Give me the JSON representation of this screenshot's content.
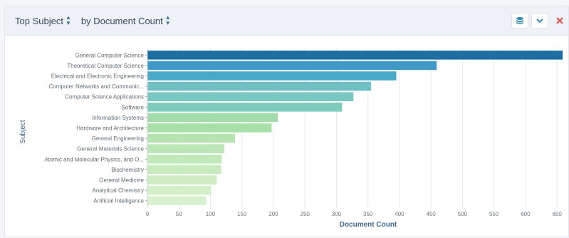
{
  "header": {
    "subject_select": "Top Subject",
    "metric_select": "by Document Count"
  },
  "icons": {
    "layers": "database-stack-icon",
    "collapse": "chevron-down-icon",
    "close": "close-icon"
  },
  "colors": {
    "accent": "#2f88b5",
    "close": "#d9534f"
  },
  "chart_data": {
    "type": "bar",
    "orientation": "horizontal",
    "xlabel": "Document Count",
    "ylabel": "Subject",
    "xlim": [
      0,
      660
    ],
    "xticks": [
      0,
      50,
      100,
      150,
      200,
      250,
      300,
      350,
      400,
      450,
      500,
      550,
      600,
      650
    ],
    "grid": "vertical",
    "categories": [
      "General Computer Science",
      "Theoretical Computer Science",
      "Electrical and Electronic Engineering",
      "Computer Networks and Communic...",
      "Computer Science Applications",
      "Software",
      "Information Systems",
      "Hardware and Architecture",
      "General Engineering",
      "General Materials Science",
      "Atomic and Molecular Physics, and O...",
      "Biochemistry",
      "General Medicine",
      "Analytical Chemistry",
      "Artificial Intelligence"
    ],
    "values": [
      659,
      459,
      395,
      355,
      327,
      309,
      207,
      197,
      139,
      122,
      118,
      117,
      110,
      101,
      93
    ],
    "colors": [
      "#1f6ea3",
      "#3f98c6",
      "#4aa8c8",
      "#6fc0c4",
      "#78c7c1",
      "#7fcbbd",
      "#a2dcab",
      "#a8dfa9",
      "#b6e4b0",
      "#bde6b6",
      "#c3e9bb",
      "#c8eabf",
      "#cdecc4",
      "#d3efc9",
      "#d7f0cd"
    ]
  }
}
